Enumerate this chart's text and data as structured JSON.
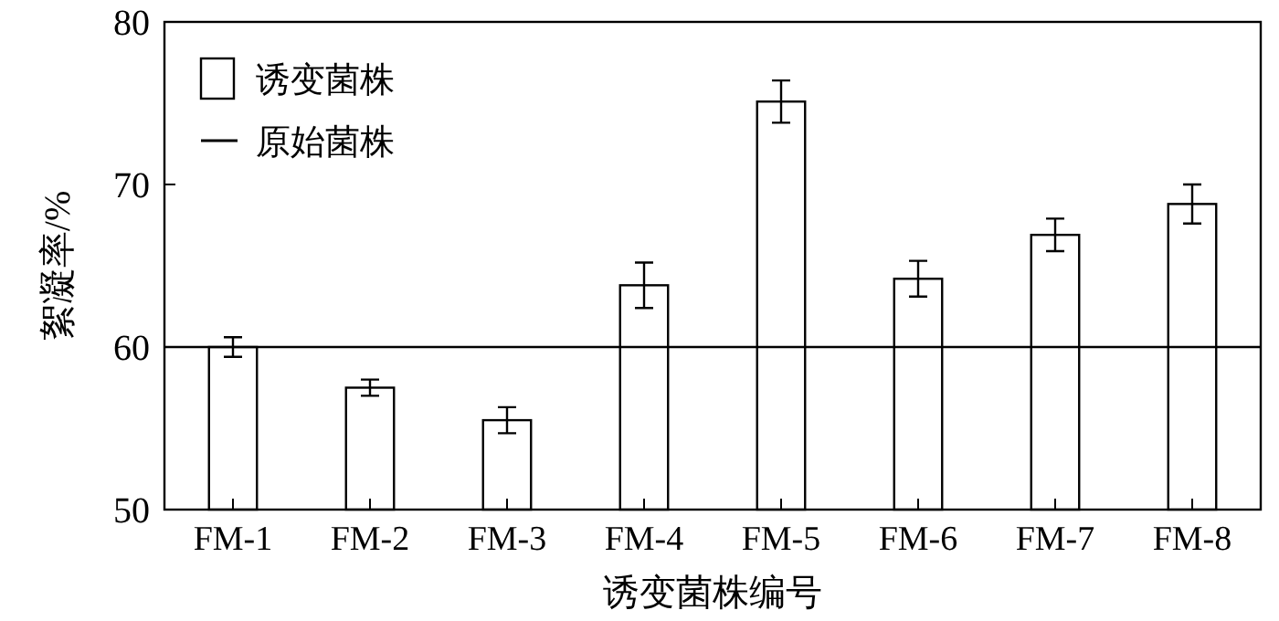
{
  "chart_data": {
    "type": "bar",
    "xlabel": "诱变菌株编号",
    "ylabel": "絮凝率/%",
    "categories": [
      "FM-1",
      "FM-2",
      "FM-3",
      "FM-4",
      "FM-5",
      "FM-6",
      "FM-7",
      "FM-8"
    ],
    "series": [
      {
        "name": "诱变菌株",
        "color": "#ffffff",
        "values": [
          60.0,
          57.5,
          55.5,
          63.8,
          75.1,
          64.2,
          66.9,
          68.8
        ],
        "errors": [
          0.6,
          0.5,
          0.8,
          1.4,
          1.3,
          1.1,
          1.0,
          1.2
        ]
      }
    ],
    "ref_lines": [
      {
        "axis": "y",
        "value": 60,
        "label": "原始菌株",
        "color": "#000000"
      }
    ],
    "ylim": [
      50,
      80
    ],
    "yticks": [
      50,
      60,
      70,
      80
    ],
    "grid": false,
    "legend": "top left"
  }
}
